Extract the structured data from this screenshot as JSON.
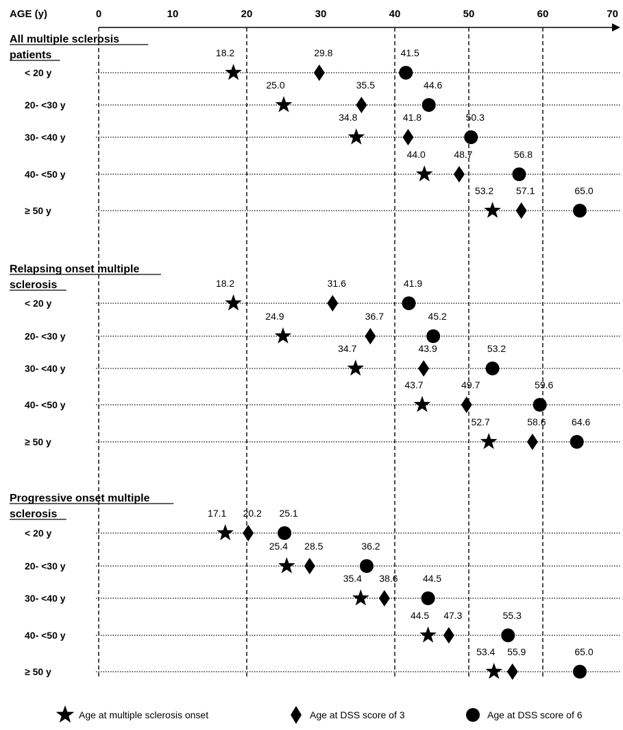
{
  "chart_data": {
    "type": "scatter",
    "x_axis_title": "AGE (y)",
    "xlim": [
      0,
      70
    ],
    "x_ticks": [
      "0",
      "10",
      "20",
      "30",
      "40",
      "50",
      "60",
      "70"
    ],
    "gridlines_vertical": [
      0,
      20,
      40,
      50,
      60
    ],
    "series": [
      {
        "name": "Age at multiple sclerosis onset",
        "marker": "star"
      },
      {
        "name": "Age at DSS score of 3",
        "marker": "diamond"
      },
      {
        "name": "Age at DSS score of 6",
        "marker": "circle"
      }
    ],
    "groups": [
      {
        "title_lines": [
          "All multiple sclerosis",
          "patients"
        ],
        "rows": [
          {
            "label": "< 20 y",
            "values": [
              18.2,
              29.8,
              41.5
            ]
          },
          {
            "label": "20- <30 y",
            "values": [
              25.0,
              35.5,
              44.6
            ]
          },
          {
            "label": "30- <40 y",
            "values": [
              34.8,
              41.8,
              50.3
            ]
          },
          {
            "label": "40- <50 y",
            "values": [
              44.0,
              48.7,
              56.8
            ]
          },
          {
            "label": "≥ 50 y",
            "values": [
              53.2,
              57.1,
              65.0
            ]
          }
        ]
      },
      {
        "title_lines": [
          "Relapsing onset multiple",
          "sclerosis"
        ],
        "rows": [
          {
            "label": "< 20 y",
            "values": [
              18.2,
              31.6,
              41.9
            ]
          },
          {
            "label": "20- <30 y",
            "values": [
              24.9,
              36.7,
              45.2
            ]
          },
          {
            "label": "30- <40 y",
            "values": [
              34.7,
              43.9,
              53.2
            ]
          },
          {
            "label": "40- <50 y",
            "values": [
              43.7,
              49.7,
              59.6
            ]
          },
          {
            "label": "≥ 50 y",
            "values": [
              52.7,
              58.6,
              64.6
            ]
          }
        ]
      },
      {
        "title_lines": [
          "Progressive onset multiple",
          "sclerosis"
        ],
        "rows": [
          {
            "label": "< 20 y",
            "values": [
              17.1,
              20.2,
              25.1
            ]
          },
          {
            "label": "20- <30 y",
            "values": [
              25.4,
              28.5,
              36.2
            ]
          },
          {
            "label": "30- <40 y",
            "values": [
              35.4,
              38.6,
              44.5
            ]
          },
          {
            "label": "40- <50 y",
            "values": [
              44.5,
              47.3,
              55.3
            ]
          },
          {
            "label": "≥ 50 y",
            "values": [
              53.4,
              55.9,
              65.0
            ]
          }
        ]
      }
    ]
  }
}
